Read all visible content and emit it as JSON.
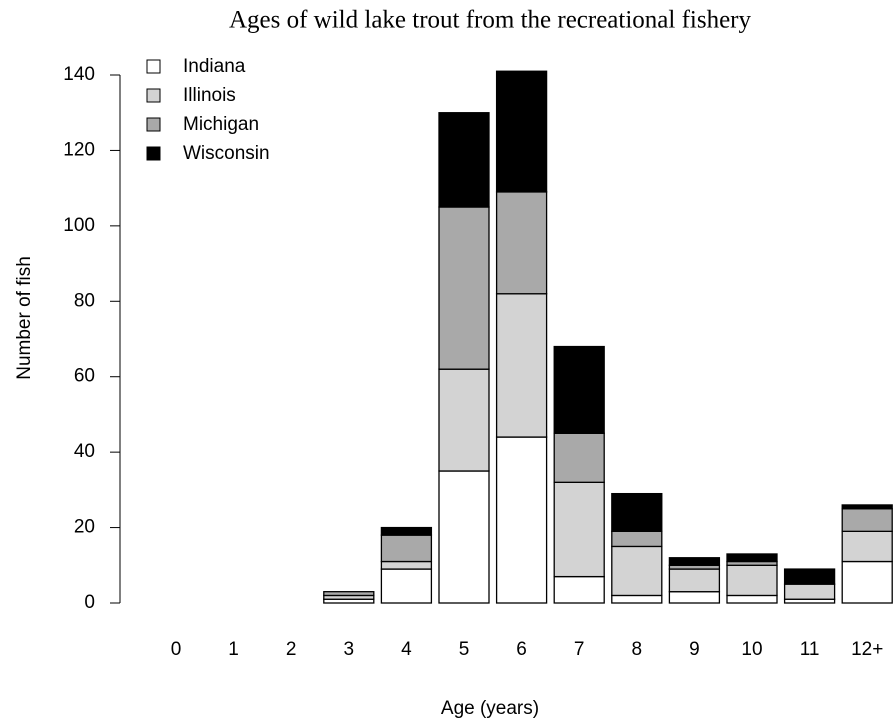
{
  "chart_data": {
    "type": "stacked_bar",
    "title": "Ages of wild lake trout from the recreational fishery",
    "x_label": "Age (years)",
    "y_label": "Number of fish",
    "categories": [
      "0",
      "1",
      "2",
      "3",
      "4",
      "5",
      "6",
      "7",
      "8",
      "9",
      "10",
      "11",
      "12+"
    ],
    "series": [
      {
        "name": "Indiana",
        "color": "#ffffff",
        "values": [
          0,
          0,
          0,
          1,
          9,
          35,
          44,
          7,
          2,
          3,
          2,
          1,
          11
        ]
      },
      {
        "name": "Illinois",
        "color": "#d3d3d3",
        "values": [
          0,
          0,
          0,
          1,
          2,
          27,
          38,
          25,
          13,
          6,
          8,
          4,
          8
        ]
      },
      {
        "name": "Michigan",
        "color": "#a9a9a9",
        "values": [
          0,
          0,
          0,
          1,
          7,
          43,
          27,
          13,
          4,
          1,
          1,
          0,
          6
        ]
      },
      {
        "name": "Wisconsin",
        "color": "#000000",
        "values": [
          0,
          0,
          0,
          0,
          2,
          25,
          32,
          23,
          10,
          2,
          2,
          4,
          1
        ]
      }
    ],
    "ylim": [
      0,
      140
    ],
    "yticks": [
      0,
      20,
      40,
      60,
      80,
      100,
      120,
      140
    ],
    "legend": "top-left"
  }
}
